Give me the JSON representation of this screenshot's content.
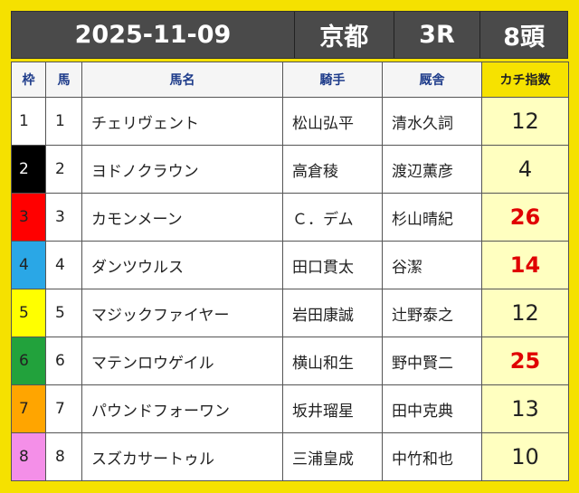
{
  "header": {
    "date": "2025-11-09",
    "venue": "京都",
    "race": "3R",
    "heads": "8頭"
  },
  "columns": {
    "waku": "枠",
    "uma": "馬",
    "name": "馬名",
    "jockey": "騎手",
    "trainer": "厩舎",
    "index": "カチ指数"
  },
  "rows": [
    {
      "waku": "1",
      "uma": "1",
      "name": "チェリヴェント",
      "jockey": "松山弘平",
      "trainer": "清水久詞",
      "index": "12",
      "highlight": false,
      "waku_bg": "#ffffff",
      "waku_fg": "#222222"
    },
    {
      "waku": "2",
      "uma": "2",
      "name": "ヨドノクラウン",
      "jockey": "高倉稜",
      "trainer": "渡辺薫彦",
      "index": "4",
      "highlight": false,
      "waku_bg": "#000000",
      "waku_fg": "#ffffff"
    },
    {
      "waku": "3",
      "uma": "3",
      "name": "カモンメーン",
      "jockey": "Ｃ．デム",
      "trainer": "杉山晴紀",
      "index": "26",
      "highlight": true,
      "waku_bg": "#ff0000",
      "waku_fg": "#222222"
    },
    {
      "waku": "4",
      "uma": "4",
      "name": "ダンツウルス",
      "jockey": "田口貫太",
      "trainer": "谷潔",
      "index": "14",
      "highlight": true,
      "waku_bg": "#2aa7e6",
      "waku_fg": "#222222"
    },
    {
      "waku": "5",
      "uma": "5",
      "name": "マジックファイヤー",
      "jockey": "岩田康誠",
      "trainer": "辻野泰之",
      "index": "12",
      "highlight": false,
      "waku_bg": "#ffff00",
      "waku_fg": "#222222"
    },
    {
      "waku": "6",
      "uma": "6",
      "name": "マテンロウゲイル",
      "jockey": "横山和生",
      "trainer": "野中賢二",
      "index": "25",
      "highlight": true,
      "waku_bg": "#22a23c",
      "waku_fg": "#222222"
    },
    {
      "waku": "7",
      "uma": "7",
      "name": "パウンドフォーワン",
      "jockey": "坂井瑠星",
      "trainer": "田中克典",
      "index": "13",
      "highlight": false,
      "waku_bg": "#ffa500",
      "waku_fg": "#222222"
    },
    {
      "waku": "8",
      "uma": "8",
      "name": "スズカサートゥル",
      "jockey": "三浦皇成",
      "trainer": "中竹和也",
      "index": "10",
      "highlight": false,
      "waku_bg": "#f48fe8",
      "waku_fg": "#222222"
    }
  ]
}
